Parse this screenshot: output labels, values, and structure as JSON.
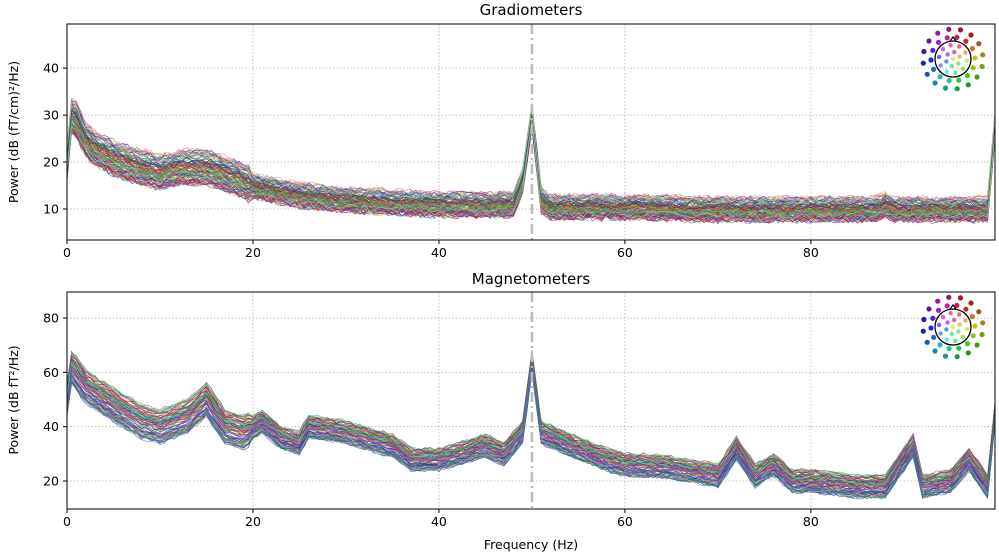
{
  "chart_data": [
    {
      "type": "line",
      "title": "Gradiometers",
      "xlabel": "",
      "ylabel": "Power (dB (fT/cm)²/Hz)",
      "xlim": [
        0,
        99.8
      ],
      "ylim": [
        3.4,
        49.4
      ],
      "xticks": [
        0,
        20,
        40,
        60,
        80
      ],
      "yticks": [
        10,
        20,
        30,
        40
      ],
      "grid": true,
      "marker_line_hz": 50,
      "legend": "sensor topomap, top-right",
      "channel_count_drawn": 100,
      "spread_db": 3,
      "x": [
        0,
        0.5,
        1,
        2,
        3,
        5,
        8,
        10,
        12,
        15,
        18,
        20,
        25,
        30,
        35,
        40,
        45,
        48,
        49,
        50,
        51,
        52,
        55,
        60,
        70,
        80,
        87,
        88,
        89,
        90,
        95,
        99,
        99.8
      ],
      "mean": [
        20,
        30,
        29,
        25,
        23,
        21,
        19,
        18,
        19,
        19,
        17,
        15,
        13,
        12,
        11.5,
        11,
        11,
        11,
        16,
        30,
        12,
        10.5,
        10.5,
        10.5,
        10,
        10,
        10,
        11,
        10,
        10,
        10,
        10,
        28
      ]
    },
    {
      "type": "line",
      "title": "Magnetometers",
      "xlabel": "Frequency (Hz)",
      "ylabel": "Power (dB fT²/Hz)",
      "xlim": [
        0,
        99.8
      ],
      "ylim": [
        9.7,
        89.6
      ],
      "xticks": [
        0,
        20,
        40,
        60,
        80
      ],
      "yticks": [
        20,
        40,
        60,
        80
      ],
      "grid": true,
      "marker_line_hz": 50,
      "legend": "sensor topomap, top-right",
      "channel_count_drawn": 100,
      "spread_db": 5,
      "x": [
        0,
        0.5,
        2,
        5,
        8,
        10,
        13,
        15,
        17,
        19,
        21,
        23,
        25,
        26,
        30,
        35,
        37,
        40,
        45,
        47,
        49,
        50,
        51,
        55,
        58,
        60,
        65,
        70,
        72,
        74,
        76,
        78,
        80,
        85,
        88,
        91,
        92,
        95,
        97,
        99,
        99.8
      ],
      "mean": [
        50,
        62,
        55,
        48,
        42,
        40,
        44,
        50,
        40,
        38,
        42,
        36,
        34,
        40,
        38,
        33,
        28,
        28,
        33,
        30,
        38,
        64,
        38,
        32,
        28,
        26,
        25,
        22,
        32,
        22,
        26,
        20,
        20,
        18,
        18,
        33,
        18,
        20,
        28,
        18,
        45
      ]
    }
  ],
  "colors": {
    "marker_line": "#bbbbbb",
    "grid": "#b0b0b0"
  }
}
